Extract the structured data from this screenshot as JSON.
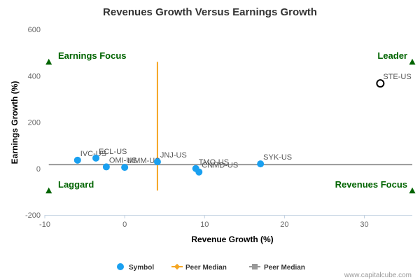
{
  "chart_data": {
    "type": "scatter",
    "title": "Revenues Growth Versus Earnings Growth",
    "xlabel": "Revenue Growth (%)",
    "ylabel": "Earnings Growth (%)",
    "xlim": [
      -10,
      36
    ],
    "ylim": [
      -200,
      600
    ],
    "xticks": [
      -10,
      0,
      10,
      20,
      30
    ],
    "yticks": [
      -200,
      0,
      200,
      400,
      600
    ],
    "grid": false,
    "points": [
      {
        "label": "IVC-US",
        "x": -5.9,
        "y": 36
      },
      {
        "label": "ECL-US",
        "x": -3.6,
        "y": 45
      },
      {
        "label": "OMI-US",
        "x": -2.3,
        "y": 7
      },
      {
        "label": "MMM-US",
        "x": 0.0,
        "y": 5
      },
      {
        "label": "JNJ-US",
        "x": 4.1,
        "y": 29
      },
      {
        "label": "TMO-US",
        "x": 8.9,
        "y": 0
      },
      {
        "label": "CNMD-US",
        "x": 9.3,
        "y": -15
      },
      {
        "label": "SYK-US",
        "x": 17.0,
        "y": 20
      },
      {
        "label": "STE-US",
        "x": 32.0,
        "y": 367,
        "highlight": true
      }
    ],
    "peer_median_x": 4.1,
    "peer_median_y": 17,
    "quadrants": {
      "top_left": "Earnings Focus",
      "top_right": "Leader",
      "bottom_left": "Laggard",
      "bottom_right": "Revenues Focus"
    },
    "legend": {
      "position": "bottom",
      "items": [
        {
          "name": "Symbol",
          "color": "#1aa0f0",
          "marker": "circle"
        },
        {
          "name": "Peer Median",
          "color": "#f5a623",
          "marker": "diamond"
        },
        {
          "name": "Peer Median",
          "color": "#999999",
          "marker": "square"
        }
      ]
    },
    "colors": {
      "point": "#1aa0f0",
      "highlight_stroke": "#000000",
      "median_vertical": "#f5a623",
      "median_horizontal": "#999999",
      "quadrant_text": "#006400",
      "quadrant_marker": "#006400"
    },
    "credit": "www.capitalcube.com"
  }
}
